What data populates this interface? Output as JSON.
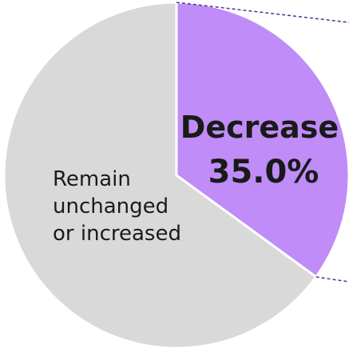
{
  "chart_data": {
    "type": "pie",
    "slices": [
      {
        "label": "Decrease",
        "value": 35.0,
        "value_label": "35.0%",
        "color": "#bf8cf8"
      },
      {
        "label_lines": [
          "Remain",
          "unchanged",
          "or increased"
        ],
        "value": 65.0,
        "color": "#d9d9d9"
      }
    ],
    "start_angle_deg": 0,
    "direction": "clockwise",
    "exploded_slice_connector": "dashed",
    "connector_color": "#5b2d91"
  }
}
